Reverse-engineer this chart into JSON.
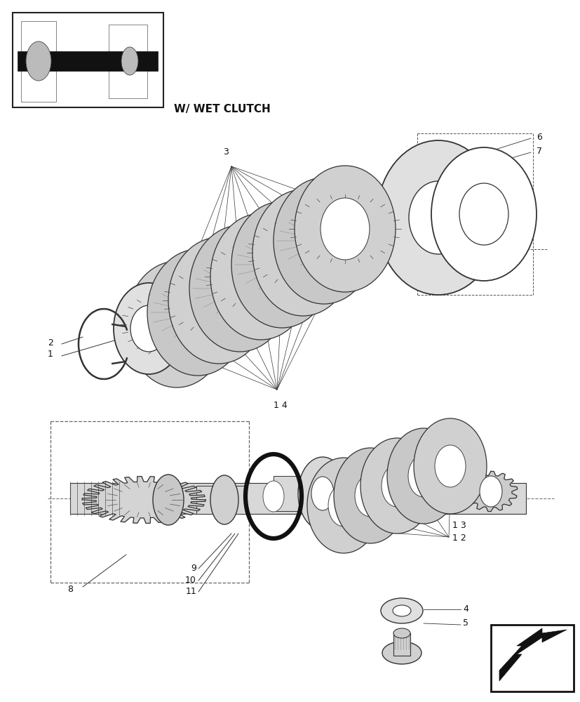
{
  "bg_color": "#ffffff",
  "title_text": "W/ WET CLUTCH",
  "fig_width": 8.28,
  "fig_height": 10.0,
  "dpi": 100
}
